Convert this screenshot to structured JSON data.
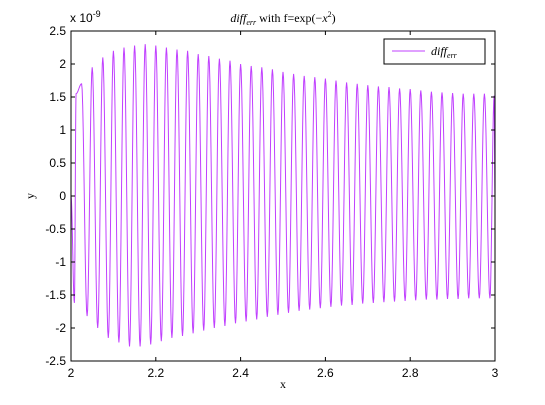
{
  "chart_data": {
    "type": "line",
    "title": "diff_err with f=exp(-x^2)",
    "title_parts": {
      "main": "diff",
      "sub": "err",
      "mid": " with f=exp(",
      "neg": "−",
      "var": "x",
      "sup": "2",
      "end": ")"
    },
    "xlabel": "x",
    "ylabel": "y",
    "exponent_label": "x 10",
    "exponent_power": "-9",
    "xlim": [
      2,
      3
    ],
    "ylim": [
      -2.5,
      2.5
    ],
    "x_ticks": [
      "2",
      "2.2",
      "2.4",
      "2.6",
      "2.8",
      "3"
    ],
    "y_ticks": [
      "2.5",
      "2",
      "1.5",
      "1",
      "0.5",
      "0",
      "-0.5",
      "-1",
      "-1.5",
      "-2",
      "-2.5"
    ],
    "grid": false,
    "legend_position": "top-right",
    "series": [
      {
        "name": "diff_err",
        "name_parts": {
          "main": "diff",
          "sub": "err"
        },
        "color": "#c040ff",
        "peaks_x": [
          2.012,
          2.025,
          2.05,
          2.075,
          2.1,
          2.125,
          2.15,
          2.175,
          2.2,
          2.225,
          2.25,
          2.275,
          2.3,
          2.325,
          2.35,
          2.375,
          2.4,
          2.425,
          2.45,
          2.475,
          2.5,
          2.525,
          2.55,
          2.575,
          2.6,
          2.625,
          2.65,
          2.675,
          2.7,
          2.725,
          2.75,
          2.775,
          2.8,
          2.825,
          2.85,
          2.875,
          2.9,
          2.925,
          2.95,
          2.975,
          2.998
        ],
        "peaks_y": [
          1.55,
          1.7,
          1.95,
          2.1,
          2.2,
          2.25,
          2.28,
          2.3,
          2.28,
          2.25,
          2.22,
          2.2,
          2.15,
          2.12,
          2.08,
          2.05,
          2.0,
          1.97,
          1.95,
          1.92,
          1.88,
          1.85,
          1.82,
          1.8,
          1.78,
          1.75,
          1.72,
          1.7,
          1.68,
          1.66,
          1.65,
          1.63,
          1.62,
          1.6,
          1.58,
          1.57,
          1.56,
          1.55,
          1.55,
          1.55,
          1.52
        ],
        "troughs_x": [
          2.008,
          2.038,
          2.063,
          2.088,
          2.113,
          2.138,
          2.163,
          2.188,
          2.213,
          2.238,
          2.263,
          2.288,
          2.313,
          2.338,
          2.363,
          2.388,
          2.413,
          2.438,
          2.463,
          2.488,
          2.513,
          2.538,
          2.563,
          2.588,
          2.613,
          2.638,
          2.663,
          2.688,
          2.713,
          2.738,
          2.763,
          2.788,
          2.813,
          2.838,
          2.863,
          2.888,
          2.913,
          2.938,
          2.963,
          2.988
        ],
        "troughs_y": [
          -1.62,
          -1.82,
          -2.0,
          -2.15,
          -2.22,
          -2.28,
          -2.28,
          -2.25,
          -2.2,
          -2.15,
          -2.12,
          -2.08,
          -2.04,
          -2.0,
          -1.97,
          -1.93,
          -1.9,
          -1.87,
          -1.83,
          -1.8,
          -1.77,
          -1.74,
          -1.72,
          -1.7,
          -1.68,
          -1.66,
          -1.65,
          -1.63,
          -1.62,
          -1.61,
          -1.6,
          -1.59,
          -1.58,
          -1.57,
          -1.57,
          -1.56,
          -1.56,
          -1.55,
          -1.55,
          -1.55
        ]
      }
    ]
  }
}
